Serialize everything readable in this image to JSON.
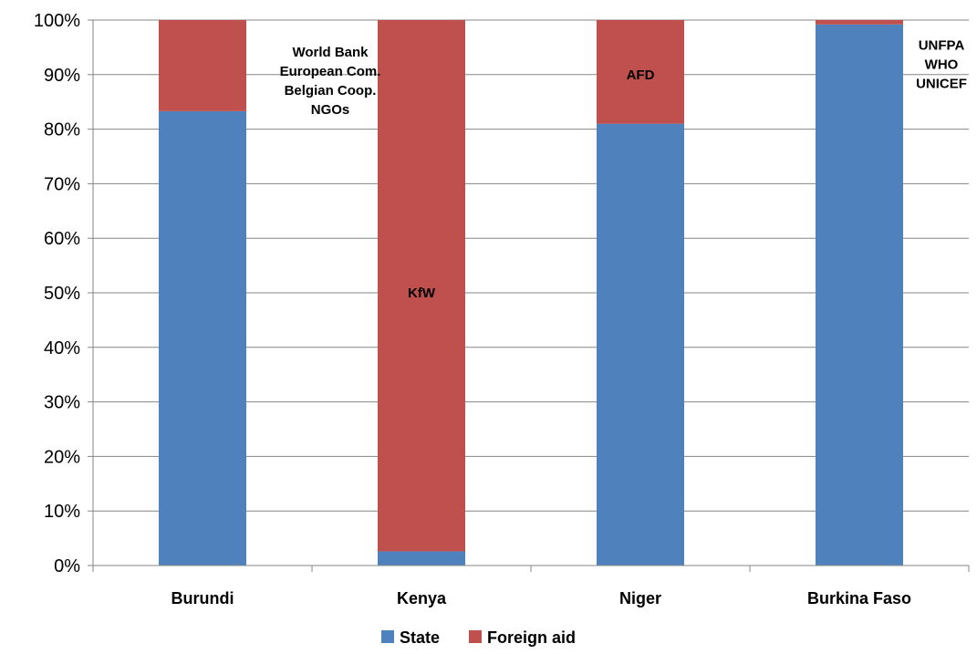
{
  "chart_data": {
    "type": "bar",
    "stacked": true,
    "categories": [
      "Burundi",
      "Kenya",
      "Niger",
      "Burkina Faso"
    ],
    "series": [
      {
        "name": "State",
        "color": "#4F81BD",
        "values": [
          83.3,
          2.6,
          81.0,
          99.2
        ]
      },
      {
        "name": "Foreign aid",
        "color": "#C0504D",
        "values": [
          16.7,
          97.4,
          19.0,
          0.8
        ]
      }
    ],
    "ylim": [
      0,
      100
    ],
    "yticks": [
      "0%",
      "10%",
      "20%",
      "30%",
      "40%",
      "50%",
      "60%",
      "70%",
      "80%",
      "90%",
      "100%"
    ],
    "grid": true,
    "legend": "bottom",
    "annotations": [
      {
        "category": "Burundi",
        "position": "right-of-bar",
        "lines": [
          "World Bank",
          "European Com.",
          "Belgian Coop.",
          "NGOs"
        ]
      },
      {
        "category": "Kenya",
        "position": "inside-bar",
        "lines": [
          "KfW"
        ]
      },
      {
        "category": "Niger",
        "position": "inside-bar",
        "lines": [
          "AFD"
        ]
      },
      {
        "category": "Burkina Faso",
        "position": "right-of-bar",
        "lines": [
          "UNFPA",
          "WHO",
          "UNICEF"
        ]
      }
    ]
  }
}
